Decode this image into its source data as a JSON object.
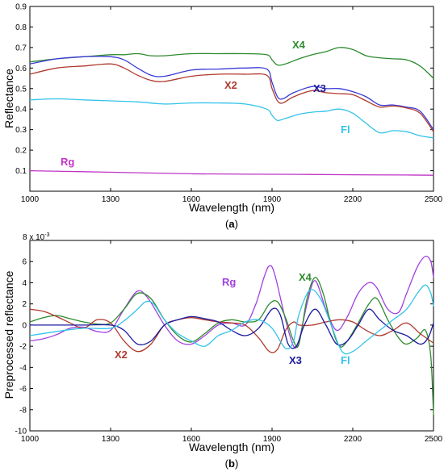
{
  "chart_data": [
    {
      "type": "line",
      "panel_label": "(a)",
      "panel_letter": "a",
      "xlabel": "Wavelength (nm)",
      "ylabel": "Reflectance",
      "xlim": [
        1000,
        2500
      ],
      "ylim": [
        0,
        0.9
      ],
      "xticks": [
        "1000",
        "1300",
        "1600",
        "1900",
        "2200",
        "2500"
      ],
      "yticks": [
        "0.1",
        "0.2",
        "0.3",
        "0.4",
        "0.5",
        "0.6",
        "0.7",
        "0.8",
        "0.9"
      ],
      "grid": false,
      "series": [
        {
          "name": "X4",
          "color": "#2e8b2e",
          "x": [
            1000,
            1100,
            1200,
            1300,
            1350,
            1400,
            1450,
            1500,
            1600,
            1700,
            1800,
            1880,
            1900,
            1920,
            1950,
            2000,
            2050,
            2100,
            2150,
            2200,
            2250,
            2300,
            2350,
            2400,
            2450,
            2500
          ],
          "y": [
            0.63,
            0.645,
            0.655,
            0.665,
            0.665,
            0.67,
            0.66,
            0.66,
            0.67,
            0.67,
            0.67,
            0.665,
            0.64,
            0.615,
            0.62,
            0.645,
            0.665,
            0.68,
            0.7,
            0.69,
            0.66,
            0.65,
            0.645,
            0.64,
            0.61,
            0.55
          ]
        },
        {
          "name": "X3",
          "color": "#3b3bd6",
          "x": [
            1000,
            1100,
            1200,
            1300,
            1350,
            1400,
            1450,
            1500,
            1600,
            1700,
            1800,
            1880,
            1900,
            1920,
            1940,
            1980,
            2050,
            2100,
            2150,
            2200,
            2250,
            2300,
            2350,
            2400,
            2450,
            2500
          ],
          "y": [
            0.62,
            0.645,
            0.655,
            0.655,
            0.64,
            0.6,
            0.565,
            0.56,
            0.59,
            0.595,
            0.6,
            0.595,
            0.53,
            0.46,
            0.45,
            0.48,
            0.51,
            0.5,
            0.5,
            0.485,
            0.46,
            0.42,
            0.42,
            0.41,
            0.39,
            0.3
          ]
        },
        {
          "name": "X2",
          "color": "#b03a2e",
          "x": [
            1000,
            1100,
            1200,
            1300,
            1350,
            1400,
            1450,
            1500,
            1600,
            1700,
            1800,
            1880,
            1900,
            1920,
            1940,
            1980,
            2050,
            2100,
            2150,
            2200,
            2250,
            2300,
            2350,
            2400,
            2450,
            2500
          ],
          "y": [
            0.57,
            0.6,
            0.61,
            0.62,
            0.6,
            0.565,
            0.54,
            0.535,
            0.56,
            0.57,
            0.57,
            0.565,
            0.5,
            0.44,
            0.43,
            0.46,
            0.49,
            0.48,
            0.475,
            0.47,
            0.44,
            0.41,
            0.415,
            0.405,
            0.38,
            0.29
          ]
        },
        {
          "name": "Fl",
          "color": "#33c3ea",
          "x": [
            1000,
            1100,
            1200,
            1300,
            1400,
            1500,
            1600,
            1700,
            1800,
            1880,
            1900,
            1920,
            1950,
            2000,
            2050,
            2100,
            2150,
            2200,
            2250,
            2300,
            2350,
            2400,
            2450,
            2500
          ],
          "y": [
            0.445,
            0.45,
            0.445,
            0.44,
            0.435,
            0.425,
            0.43,
            0.43,
            0.425,
            0.4,
            0.37,
            0.345,
            0.355,
            0.375,
            0.385,
            0.39,
            0.4,
            0.38,
            0.33,
            0.285,
            0.295,
            0.29,
            0.27,
            0.26
          ]
        },
        {
          "name": "Rg",
          "color": "#c034c8",
          "x": [
            1000,
            1200,
            1400,
            1600,
            1800,
            2000,
            2200,
            2400,
            2500
          ],
          "y": [
            0.1,
            0.095,
            0.09,
            0.085,
            0.083,
            0.082,
            0.08,
            0.079,
            0.078
          ]
        }
      ]
    },
    {
      "type": "line",
      "panel_label": "(b)",
      "panel_letter": "b",
      "xlabel": "Wavelength (nm)",
      "ylabel": "Preprocessed reflectance",
      "multiplier_base": "8 x 10",
      "multiplier_exp": "-3",
      "xlim": [
        1000,
        2500
      ],
      "ylim": [
        -10,
        8
      ],
      "xticks": [
        "1000",
        "1300",
        "1600",
        "1900",
        "2200",
        "2500"
      ],
      "yticks": [
        "-10",
        "-8",
        "-6",
        "-4",
        "-2",
        "0",
        "2",
        "4",
        "6"
      ],
      "grid": false,
      "series": [
        {
          "name": "Rg",
          "color": "#a040e0",
          "x": [
            1000,
            1050,
            1100,
            1150,
            1200,
            1250,
            1300,
            1350,
            1400,
            1440,
            1500,
            1550,
            1600,
            1650,
            1700,
            1750,
            1800,
            1840,
            1870,
            1890,
            1910,
            1950,
            1980,
            2000,
            2030,
            2060,
            2100,
            2140,
            2180,
            2220,
            2260,
            2290,
            2330,
            2370,
            2400,
            2440,
            2470,
            2490,
            2500
          ],
          "y": [
            -1.5,
            -1.3,
            -0.9,
            -0.3,
            -0.2,
            -0.6,
            -0.5,
            1.5,
            3.2,
            2.5,
            0,
            -1.5,
            -1.8,
            -1,
            0,
            0.2,
            0,
            2,
            4.5,
            5.6,
            4.8,
            0.5,
            -2,
            -1.5,
            2,
            4.2,
            1.5,
            -0.5,
            0.8,
            3,
            4,
            3.5,
            1.5,
            1.2,
            3,
            5.5,
            6.5,
            6,
            4.5
          ]
        },
        {
          "name": "X4",
          "color": "#2e8b2e",
          "x": [
            1000,
            1050,
            1100,
            1150,
            1200,
            1250,
            1300,
            1350,
            1400,
            1450,
            1500,
            1550,
            1600,
            1650,
            1700,
            1750,
            1800,
            1850,
            1890,
            1920,
            1950,
            1980,
            2000,
            2030,
            2060,
            2090,
            2120,
            2150,
            2180,
            2220,
            2260,
            2290,
            2330,
            2370,
            2400,
            2440,
            2470,
            2490,
            2500
          ],
          "y": [
            0.3,
            0.7,
            0.9,
            0.6,
            0.3,
            0.1,
            0.2,
            1.5,
            3,
            2.5,
            0.5,
            -1,
            -1.6,
            -0.8,
            0.2,
            0.5,
            0.3,
            0.5,
            2,
            2.2,
            0.7,
            -1.5,
            -1.8,
            2.5,
            4.5,
            3,
            0,
            -2,
            -1.5,
            0.2,
            2,
            2.5,
            0.5,
            -1.2,
            -1.8,
            -1.2,
            -0.5,
            -3,
            -8.5
          ]
        },
        {
          "name": "X2",
          "color": "#b03a2e",
          "x": [
            1000,
            1050,
            1100,
            1150,
            1200,
            1250,
            1300,
            1350,
            1400,
            1450,
            1500,
            1550,
            1600,
            1650,
            1700,
            1750,
            1800,
            1850,
            1890,
            1920,
            1950,
            1980,
            2000,
            2050,
            2100,
            2150,
            2200,
            2250,
            2300,
            2350,
            2400,
            2450,
            2500
          ],
          "y": [
            1.5,
            1.3,
            0.8,
            0.2,
            -0.3,
            0.5,
            0.2,
            -1.5,
            -2.5,
            -1.8,
            0,
            0.5,
            0.7,
            0.5,
            0.3,
            0.2,
            0,
            -1.2,
            -2.5,
            -2.3,
            -0.5,
            0.3,
            0,
            0,
            0.3,
            0.5,
            0.3,
            -0.5,
            -1,
            -0.5,
            0.2,
            -0.8,
            -1.7
          ]
        },
        {
          "name": "X3",
          "color": "#1a1aa0",
          "x": [
            1000,
            1100,
            1200,
            1300,
            1350,
            1400,
            1450,
            1500,
            1550,
            1600,
            1650,
            1700,
            1750,
            1800,
            1850,
            1900,
            1930,
            1960,
            1990,
            2020,
            2060,
            2100,
            2140,
            2180,
            2220,
            2260,
            2300,
            2350,
            2400,
            2450,
            2480,
            2500
          ],
          "y": [
            0,
            0,
            0,
            0,
            -0.5,
            -1.8,
            -1.5,
            0,
            0.5,
            0.8,
            0.6,
            0.3,
            -0.5,
            -1,
            -0.3,
            1.5,
            1,
            -1.8,
            -2,
            0,
            1.5,
            0,
            -1.8,
            -1.5,
            0,
            1.5,
            0.5,
            -0.5,
            -1,
            -1.8,
            -1.2,
            0.2
          ]
        },
        {
          "name": "Fl",
          "color": "#33c3ea",
          "x": [
            1000,
            1100,
            1200,
            1300,
            1350,
            1400,
            1430,
            1460,
            1500,
            1550,
            1600,
            1650,
            1700,
            1750,
            1800,
            1850,
            1900,
            1950,
            1980,
            2000,
            2040,
            2080,
            2120,
            2160,
            2200,
            2250,
            2300,
            2350,
            2400,
            2440,
            2470,
            2490,
            2500
          ],
          "y": [
            -1,
            -0.6,
            -0.3,
            -0.3,
            0.4,
            1.5,
            2.2,
            2,
            0.5,
            -0.8,
            -1.5,
            -2,
            -1,
            -0.5,
            0.3,
            0.5,
            -0.3,
            -2.2,
            -1.5,
            1,
            3.3,
            2.5,
            0,
            -2.5,
            -2.5,
            -1.5,
            -0.5,
            0.5,
            1.5,
            3,
            3.8,
            3,
            1.8
          ]
        }
      ]
    }
  ],
  "labels": {
    "a": {
      "X4": "X4",
      "X2": "X2",
      "X3": "X3",
      "Fl": "Fl",
      "Rg": "Rg"
    },
    "b": {
      "Rg": "Rg",
      "X4": "X4",
      "X2": "X2",
      "X3": "X3",
      "Fl": "Fl"
    }
  }
}
